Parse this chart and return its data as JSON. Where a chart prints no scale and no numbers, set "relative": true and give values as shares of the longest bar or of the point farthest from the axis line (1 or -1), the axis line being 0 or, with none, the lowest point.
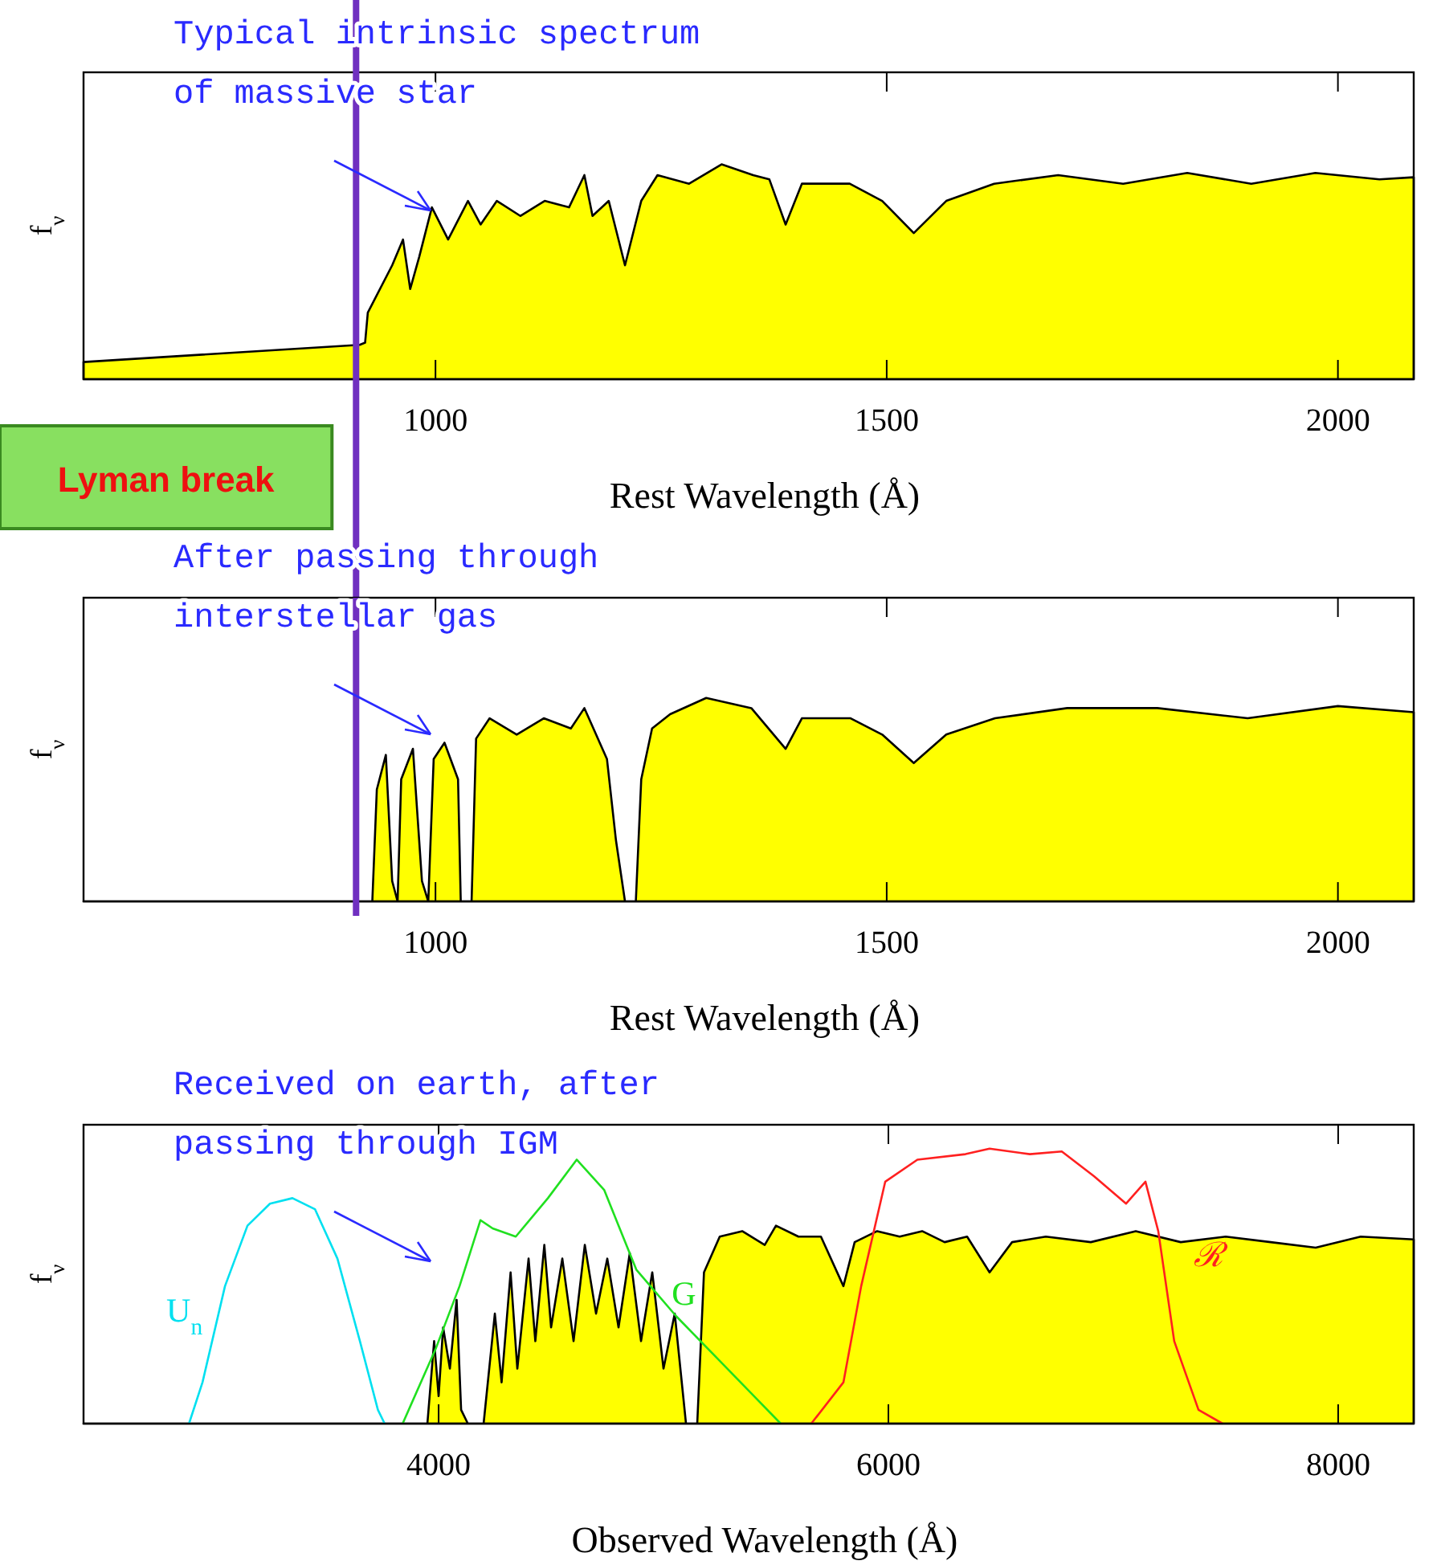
{
  "chart_data": [
    {
      "type": "area",
      "relative": true,
      "xlabel": "Rest Wavelength (Å)",
      "ylabel": "f$_{ν}$",
      "xlim": [
        610,
        2084
      ],
      "xticks": [
        1000,
        1500,
        2000
      ],
      "annotations": [
        "Typical intrinsic spectrum of massive star"
      ],
      "ref_lines": [
        {
          "axis": "x",
          "value": 912,
          "label": "Lyman break",
          "color": "#7030c0"
        }
      ],
      "series": [
        {
          "color": "#ffff00",
          "x": [
            610,
            916,
            922,
            925,
            952,
            964,
            972,
            982,
            996,
            1014,
            1036,
            1050,
            1068,
            1094,
            1121,
            1148,
            1165,
            1174,
            1192,
            1210,
            1228,
            1246,
            1281,
            1317,
            1352,
            1370,
            1388,
            1406,
            1459,
            1495,
            1530,
            1566,
            1619,
            1690,
            1762,
            1833,
            1904,
            1975,
            2046,
            2084
          ],
          "values": [
            0.08,
            0.16,
            0.17,
            0.31,
            0.53,
            0.65,
            0.42,
            0.57,
            0.8,
            0.65,
            0.83,
            0.72,
            0.83,
            0.76,
            0.83,
            0.8,
            0.95,
            0.76,
            0.83,
            0.53,
            0.83,
            0.95,
            0.91,
            1,
            0.95,
            0.93,
            0.72,
            0.91,
            0.91,
            0.83,
            0.68,
            0.83,
            0.91,
            0.95,
            0.91,
            0.96,
            0.91,
            0.96,
            0.93,
            0.94
          ]
        }
      ]
    },
    {
      "type": "area",
      "relative": true,
      "xlabel": "Rest Wavelength (Å)",
      "ylabel": "f$_{ν}$",
      "xlim": [
        610,
        2084
      ],
      "xticks": [
        1000,
        1500,
        2000
      ],
      "annotations": [
        "After passing through interstellar gas"
      ],
      "ref_lines": [
        {
          "axis": "x",
          "value": 912,
          "color": "#7030c0"
        }
      ],
      "series": [
        {
          "color": "#ffff00",
          "x": [
            610,
            930,
            935,
            945,
            952,
            958,
            962,
            975,
            985,
            992,
            998,
            1010,
            1025,
            1028,
            1040,
            1045,
            1060,
            1090,
            1120,
            1150,
            1165,
            1175,
            1190,
            1200,
            1210,
            1222,
            1228,
            1240,
            1260,
            1300,
            1350,
            1388,
            1406,
            1460,
            1495,
            1530,
            1566,
            1620,
            1700,
            1800,
            1900,
            2000,
            2084
          ],
          "values": [
            0,
            0,
            0.55,
            0.72,
            0.1,
            0,
            0.6,
            0.75,
            0.1,
            0,
            0.7,
            0.78,
            0.6,
            0,
            0,
            0.8,
            0.9,
            0.82,
            0.9,
            0.85,
            0.95,
            0.85,
            0.7,
            0.3,
            0,
            0,
            0.6,
            0.85,
            0.92,
            1,
            0.95,
            0.75,
            0.9,
            0.9,
            0.82,
            0.68,
            0.82,
            0.9,
            0.95,
            0.95,
            0.9,
            0.96,
            0.93
          ]
        }
      ]
    },
    {
      "type": "area",
      "relative": true,
      "xlabel": "Observed Wavelength (Å)",
      "ylabel": "f$_{ν}$",
      "xlim": [
        2421,
        8336
      ],
      "xticks": [
        4000,
        6000,
        8000
      ],
      "annotations": [
        "Received on earth, after passing through IGM"
      ],
      "series": [
        {
          "color": "#ffff00",
          "x": [
            2421,
            3950,
            3980,
            4000,
            4020,
            4050,
            4080,
            4100,
            4130,
            4200,
            4250,
            4280,
            4320,
            4350,
            4400,
            4430,
            4470,
            4500,
            4550,
            4600,
            4650,
            4700,
            4750,
            4800,
            4850,
            4900,
            4950,
            5000,
            5050,
            5100,
            5150,
            5180,
            5250,
            5350,
            5450,
            5500,
            5600,
            5700,
            5800,
            5850,
            5950,
            6050,
            6150,
            6250,
            6350,
            6450,
            6550,
            6700,
            6900,
            7100,
            7300,
            7500,
            7700,
            7900,
            8100,
            8336
          ],
          "values": [
            0,
            0,
            0.3,
            0.1,
            0.35,
            0.2,
            0.45,
            0.05,
            0,
            0,
            0.4,
            0.15,
            0.55,
            0.2,
            0.6,
            0.3,
            0.65,
            0.35,
            0.6,
            0.3,
            0.65,
            0.4,
            0.6,
            0.35,
            0.62,
            0.3,
            0.55,
            0.2,
            0.4,
            0,
            0,
            0.55,
            0.68,
            0.7,
            0.65,
            0.72,
            0.68,
            0.68,
            0.5,
            0.66,
            0.7,
            0.68,
            0.7,
            0.66,
            0.68,
            0.55,
            0.66,
            0.68,
            0.66,
            0.7,
            0.66,
            0.68,
            0.66,
            0.64,
            0.68,
            0.67
          ]
        },
        {
          "type": "line",
          "name": "U$_{n}$",
          "color": "#00e0f0",
          "x": [
            2890,
            2950,
            3050,
            3150,
            3250,
            3350,
            3450,
            3550,
            3650,
            3730,
            3760
          ],
          "values": [
            0,
            0.15,
            0.5,
            0.72,
            0.8,
            0.82,
            0.78,
            0.6,
            0.3,
            0.05,
            0
          ]
        },
        {
          "type": "line",
          "name": "G",
          "color": "#20e020",
          "x": [
            3840,
            3986,
            4093,
            4186,
            4240,
            4343,
            4486,
            4614,
            4736,
            4879,
            5057,
            5236,
            5414,
            5521
          ],
          "values": [
            0,
            0.27,
            0.5,
            0.74,
            0.71,
            0.68,
            0.82,
            0.96,
            0.85,
            0.56,
            0.39,
            0.24,
            0.09,
            0
          ]
        },
        {
          "type": "line",
          "name": "ℛ",
          "color": "#ff2020",
          "x": [
            5657,
            5800,
            5879,
            5986,
            6129,
            6343,
            6450,
            6629,
            6771,
            6914,
            7057,
            7143,
            7200,
            7271,
            7379,
            7486
          ],
          "values": [
            0,
            0.15,
            0.5,
            0.88,
            0.96,
            0.98,
            1,
            0.98,
            0.99,
            0.9,
            0.8,
            0.88,
            0.7,
            0.3,
            0.05,
            0
          ]
        }
      ]
    }
  ]
}
